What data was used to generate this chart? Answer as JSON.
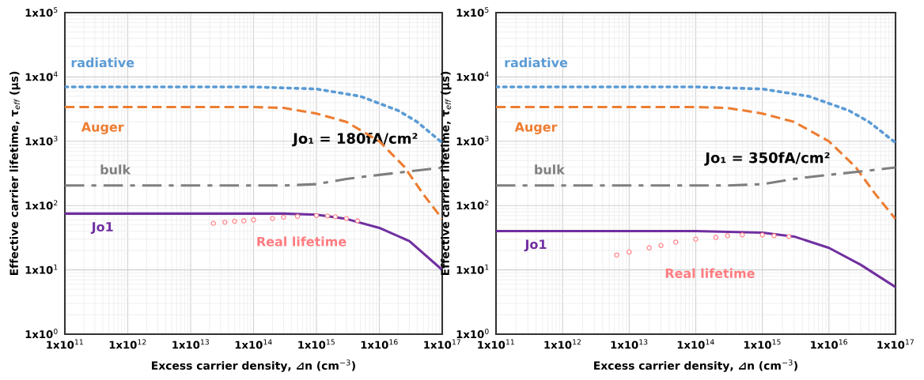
{
  "chart_data": [
    {
      "type": "line",
      "xlabel": "Excess carrier density, ⊿n (cm$^{−3}$)",
      "ylabel": "Effective carrier lifetime, τ$_{eff}$ (μs)",
      "log": "xy",
      "grid": true,
      "legend": false,
      "xlim": [
        100000000000.0,
        1e+17
      ],
      "ylim": [
        1,
        100000
      ],
      "xticks": [
        {
          "value": 100000000000.0,
          "label": "1x10$^{11}$"
        },
        {
          "value": 1000000000000.0,
          "label": "1x10$^{12}$"
        },
        {
          "value": 10000000000000.0,
          "label": "1x10$^{13}$"
        },
        {
          "value": 100000000000000.0,
          "label": "1x10$^{14}$"
        },
        {
          "value": 1000000000000000.0,
          "label": "1x10$^{15}$"
        },
        {
          "value": 1e+16,
          "label": "1x10$^{16}$"
        },
        {
          "value": 1e+17,
          "label": "1x10$^{17}$"
        }
      ],
      "yticks": [
        {
          "value": 1,
          "label": "1x10$^{0}$"
        },
        {
          "value": 10,
          "label": "1x10$^{1}$"
        },
        {
          "value": 100,
          "label": "1x10$^{2}$"
        },
        {
          "value": 1000,
          "label": "1x10$^{3}$"
        },
        {
          "value": 10000,
          "label": "1x10$^{4}$"
        },
        {
          "value": 100000,
          "label": "1x10$^{5}$"
        }
      ],
      "annotations": [
        "Jo₁ = 180fA/cm²"
      ],
      "series": [
        {
          "name": "radiative",
          "color": "#5b9bd5",
          "line_style": "dotted",
          "x": [
            100000000000.0,
            10000000000000.0,
            100000000000000.0,
            1000000000000000.0,
            5000000000000000.0,
            2e+16,
            4e+16,
            1e+17
          ],
          "values": [
            7000,
            7000,
            7000,
            6500,
            5000,
            3000,
            2000,
            950
          ]
        },
        {
          "name": "Auger",
          "color": "#ed7d31",
          "line_style": "dashed",
          "x": [
            100000000000.0,
            10000000000000.0,
            100000000000000.0,
            300000000000000.0,
            1000000000000000.0,
            3000000000000000.0,
            1e+16,
            2.5e+16,
            5e+16,
            1e+17
          ],
          "values": [
            3400,
            3400,
            3400,
            3300,
            2700,
            2000,
            1000,
            400,
            150,
            62
          ]
        },
        {
          "name": "bulk",
          "color": "#7f7f7f",
          "line_style": "dashdot",
          "x": [
            100000000000.0,
            10000000000000.0,
            300000000000000.0,
            1000000000000000.0,
            3000000000000000.0,
            1e+16,
            3e+16,
            1e+17
          ],
          "values": [
            205,
            205,
            205,
            215,
            260,
            300,
            340,
            390
          ]
        },
        {
          "name": "Jo1",
          "color": "#7030a0",
          "line_style": "solid",
          "x": [
            100000000000.0,
            10000000000000.0,
            300000000000000.0,
            1000000000000000.0,
            3000000000000000.0,
            1e+16,
            3e+16,
            1e+17
          ],
          "values": [
            75,
            75,
            75,
            72,
            62,
            45,
            28,
            10
          ]
        },
        {
          "name": "Real lifetime",
          "type": "scatter",
          "marker": "circle",
          "color": "#ff7c80",
          "x": [
            23000000000000.0,
            35000000000000.0,
            50000000000000.0,
            70000000000000.0,
            100000000000000.0,
            200000000000000.0,
            300000000000000.0,
            500000000000000.0,
            1000000000000000.0,
            1500000000000000.0,
            2000000000000000.0,
            3000000000000000.0,
            4500000000000000.0
          ],
          "values": [
            53,
            55,
            57,
            58,
            60,
            63,
            66,
            68,
            70,
            69,
            67,
            63,
            58
          ]
        }
      ]
    },
    {
      "type": "line",
      "xlabel": "Excess carrier density, ⊿n (cm$^{−3}$)",
      "ylabel": "Effective carrier lifetime, τ$_{eff}$ (μs)",
      "log": "xy",
      "grid": true,
      "legend": false,
      "xlim": [
        100000000000.0,
        1e+17
      ],
      "ylim": [
        1,
        100000
      ],
      "xticks": [
        {
          "value": 100000000000.0,
          "label": "1x10$^{11}$"
        },
        {
          "value": 1000000000000.0,
          "label": "1x10$^{12}$"
        },
        {
          "value": 10000000000000.0,
          "label": "1x10$^{13}$"
        },
        {
          "value": 100000000000000.0,
          "label": "1x10$^{14}$"
        },
        {
          "value": 1000000000000000.0,
          "label": "1x10$^{15}$"
        },
        {
          "value": 1e+16,
          "label": "1x10$^{16}$"
        },
        {
          "value": 1e+17,
          "label": "1x10$^{17}$"
        }
      ],
      "yticks": [
        {
          "value": 1,
          "label": "1x10$^{0}$"
        },
        {
          "value": 10,
          "label": "1x10$^{1}$"
        },
        {
          "value": 100,
          "label": "1x10$^{2}$"
        },
        {
          "value": 1000,
          "label": "1x10$^{3}$"
        },
        {
          "value": 10000,
          "label": "1x10$^{4}$"
        },
        {
          "value": 100000,
          "label": "1x10$^{5}$"
        }
      ],
      "annotations": [
        "Jo₁ = 350fA/cm²"
      ],
      "series": [
        {
          "name": "radiative",
          "color": "#5b9bd5",
          "line_style": "dotted",
          "x": [
            100000000000.0,
            10000000000000.0,
            100000000000000.0,
            1000000000000000.0,
            5000000000000000.0,
            2e+16,
            4e+16,
            1e+17
          ],
          "values": [
            7000,
            7000,
            7000,
            6500,
            5000,
            3000,
            2000,
            950
          ]
        },
        {
          "name": "Auger",
          "color": "#ed7d31",
          "line_style": "dashed",
          "x": [
            100000000000.0,
            10000000000000.0,
            100000000000000.0,
            300000000000000.0,
            1000000000000000.0,
            3000000000000000.0,
            1e+16,
            2.5e+16,
            5e+16,
            1e+17
          ],
          "values": [
            3400,
            3400,
            3400,
            3300,
            2700,
            2000,
            1000,
            400,
            150,
            62
          ]
        },
        {
          "name": "bulk",
          "color": "#7f7f7f",
          "line_style": "dashdot",
          "x": [
            100000000000.0,
            10000000000000.0,
            300000000000000.0,
            1000000000000000.0,
            3000000000000000.0,
            1e+16,
            3e+16,
            1e+17
          ],
          "values": [
            205,
            205,
            205,
            215,
            260,
            300,
            340,
            390
          ]
        },
        {
          "name": "Jo1",
          "color": "#7030a0",
          "line_style": "solid",
          "x": [
            100000000000.0,
            10000000000000.0,
            100000000000000.0,
            1000000000000000.0,
            3000000000000000.0,
            1e+16,
            3e+16,
            1e+17
          ],
          "values": [
            40,
            40,
            40,
            38,
            33,
            22,
            12,
            5.4
          ]
        },
        {
          "name": "Real lifetime",
          "type": "scatter",
          "marker": "circle",
          "color": "#ff7c80",
          "x": [
            6500000000000.0,
            10000000000000.0,
            20000000000000.0,
            30000000000000.0,
            50000000000000.0,
            100000000000000.0,
            200000000000000.0,
            300000000000000.0,
            500000000000000.0,
            1000000000000000.0,
            1500000000000000.0,
            2500000000000000.0
          ],
          "values": [
            17,
            19,
            22,
            24,
            27,
            30,
            32,
            34,
            35,
            35,
            34,
            33
          ]
        }
      ]
    }
  ]
}
